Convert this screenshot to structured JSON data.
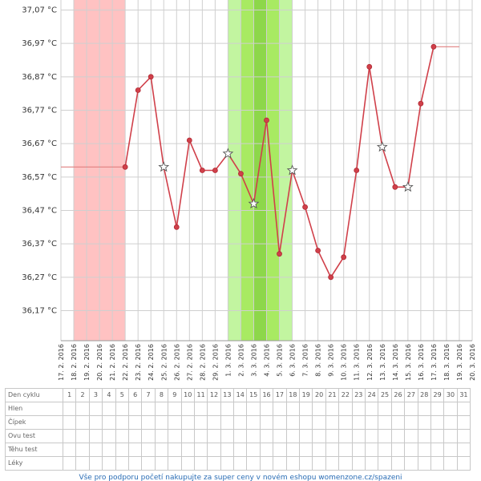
{
  "chart_data": {
    "type": "line",
    "ylim": [
      36.08,
      37.1
    ],
    "yticks": [
      "36,17 °C",
      "36,27 °C",
      "36,37 °C",
      "36,47 °C",
      "36,57 °C",
      "36,67 °C",
      "36,77 °C",
      "36,87 °C",
      "36,97 °C",
      "37,07 °C"
    ],
    "ytick_values": [
      36.17,
      36.27,
      36.37,
      36.47,
      36.57,
      36.67,
      36.77,
      36.87,
      36.97,
      37.07
    ],
    "xlabels": [
      "17. 2. 2016",
      "18. 2. 2016",
      "19. 2. 2016",
      "20. 2. 2016",
      "21. 2. 2016",
      "22. 2. 2016",
      "23. 2. 2016",
      "24. 2. 2016",
      "25. 2. 2016",
      "26. 2. 2016",
      "27. 2. 2016",
      "28. 2. 2016",
      "29. 2. 2016",
      "1. 3. 2016",
      "2. 3. 2016",
      "3. 3. 2016",
      "4. 3. 2016",
      "5. 3. 2016",
      "6. 3. 2016",
      "7. 3. 2016",
      "8. 3. 2016",
      "9. 3. 2016",
      "10. 3. 2016",
      "11. 3. 2016",
      "12. 3. 2016",
      "13. 3. 2016",
      "14. 3. 2016",
      "15. 3. 2016",
      "16. 3. 2016",
      "17. 3. 2016",
      "18. 3. 2016",
      "19. 3. 2016",
      "20. 3. 2016"
    ],
    "series": [
      {
        "color": "#d0404a",
        "points": [
          {
            "x": "22. 2. 2016",
            "y": 36.6,
            "marker": "dot"
          },
          {
            "x": "23. 2. 2016",
            "y": 36.83,
            "marker": "dot"
          },
          {
            "x": "24. 2. 2016",
            "y": 36.87,
            "marker": "dot"
          },
          {
            "x": "25. 2. 2016",
            "y": 36.6,
            "marker": "star"
          },
          {
            "x": "26. 2. 2016",
            "y": 36.42,
            "marker": "dot"
          },
          {
            "x": "27. 2. 2016",
            "y": 36.68,
            "marker": "dot"
          },
          {
            "x": "28. 2. 2016",
            "y": 36.59,
            "marker": "dot"
          },
          {
            "x": "29. 2. 2016",
            "y": 36.59,
            "marker": "dot"
          },
          {
            "x": "1. 3. 2016",
            "y": 36.64,
            "marker": "star"
          },
          {
            "x": "2. 3. 2016",
            "y": 36.58,
            "marker": "dot"
          },
          {
            "x": "3. 3. 2016",
            "y": 36.49,
            "marker": "star"
          },
          {
            "x": "4. 3. 2016",
            "y": 36.74,
            "marker": "dot"
          },
          {
            "x": "5. 3. 2016",
            "y": 36.34,
            "marker": "dot"
          },
          {
            "x": "6. 3. 2016",
            "y": 36.59,
            "marker": "star"
          },
          {
            "x": "7. 3. 2016",
            "y": 36.48,
            "marker": "dot"
          },
          {
            "x": "8. 3. 2016",
            "y": 36.35,
            "marker": "dot"
          },
          {
            "x": "9. 3. 2016",
            "y": 36.27,
            "marker": "dot"
          },
          {
            "x": "10. 3. 2016",
            "y": 36.33,
            "marker": "dot"
          },
          {
            "x": "11. 3. 2016",
            "y": 36.59,
            "marker": "dot"
          },
          {
            "x": "12. 3. 2016",
            "y": 36.9,
            "marker": "dot"
          },
          {
            "x": "13. 3. 2016",
            "y": 36.66,
            "marker": "star"
          },
          {
            "x": "14. 3. 2016",
            "y": 36.54,
            "marker": "dot"
          },
          {
            "x": "15. 3. 2016",
            "y": 36.54,
            "marker": "star"
          },
          {
            "x": "16. 3. 2016",
            "y": 36.79,
            "marker": "dot"
          },
          {
            "x": "17. 3. 2016",
            "y": 36.96,
            "marker": "dot"
          }
        ]
      }
    ],
    "dashes": [
      {
        "from": "17. 2. 2016",
        "to": "22. 2. 2016",
        "y": 36.6
      },
      {
        "from": "17. 3. 2016",
        "to": "19. 3. 2016",
        "y": 36.96
      }
    ],
    "bands": [
      {
        "from": "18. 2. 2016",
        "to": "22. 2. 2016",
        "color": "#ffc2c2"
      },
      {
        "from": "1. 3. 2016",
        "to": "6. 3. 2016",
        "color": "#c2f5a0"
      },
      {
        "from": "2. 3. 2016",
        "to": "5. 3. 2016",
        "color": "#a8ea62"
      },
      {
        "from": "3. 3. 2016",
        "to": "4. 3. 2016",
        "color": "#8dd74a"
      }
    ],
    "grid": true,
    "legend": "none"
  },
  "table": {
    "header_label": "Den cyklu",
    "days": [
      "1",
      "2",
      "3",
      "4",
      "5",
      "6",
      "7",
      "8",
      "9",
      "10",
      "11",
      "12",
      "13",
      "14",
      "15",
      "16",
      "17",
      "18",
      "19",
      "20",
      "21",
      "22",
      "23",
      "24",
      "25",
      "26",
      "27",
      "28",
      "29",
      "30",
      "31"
    ],
    "rows": [
      "Hlen",
      "Čípek",
      "Ovu test",
      "Těhu test",
      "Léky"
    ]
  },
  "footer": {
    "link_text": "Vše pro podporu početí nakupujte za super ceny v novém eshopu womenzone.cz/spazeni"
  }
}
